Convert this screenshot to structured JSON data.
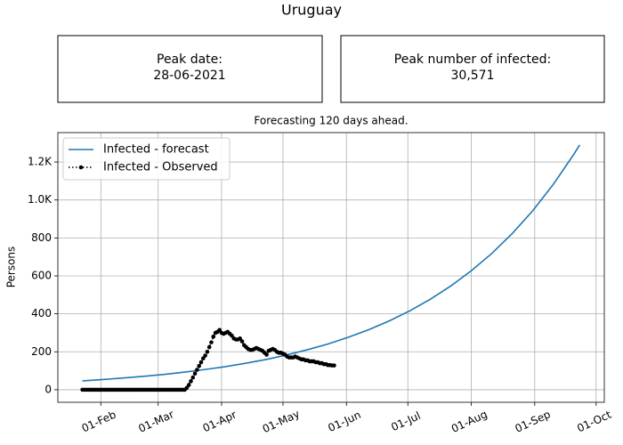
{
  "title": "Uruguay",
  "info_boxes": [
    {
      "label": "Peak date:",
      "value": "28-06-2021"
    },
    {
      "label": "Peak number of infected:",
      "value": "30,571"
    }
  ],
  "chart_data": {
    "type": "line",
    "title": "Forecasting 120 days ahead.",
    "y_label": "Persons",
    "xlim": [
      11,
      278
    ],
    "xticks": [
      {
        "value": 32,
        "label": "01-Feb"
      },
      {
        "value": 60,
        "label": "01-Mar"
      },
      {
        "value": 91,
        "label": "01-Apr"
      },
      {
        "value": 121,
        "label": "01-May"
      },
      {
        "value": 152,
        "label": "01-Jun"
      },
      {
        "value": 182,
        "label": "01-Jul"
      },
      {
        "value": 213,
        "label": "01-Aug"
      },
      {
        "value": 244,
        "label": "01-Sep"
      },
      {
        "value": 274,
        "label": "01-Oct"
      }
    ],
    "ylim": [
      -66,
      1355
    ],
    "yticks": [
      0,
      200,
      400,
      600,
      800,
      {
        "value": 1000,
        "label": "1.0K"
      },
      {
        "value": 1200,
        "label": "1.2K"
      }
    ],
    "grid": true,
    "legend": "upper left",
    "series": [
      {
        "name": "Infected - forecast",
        "color": "#1f77b4",
        "dash": "solid",
        "marker": "none",
        "x": [
          23,
          33,
          43,
          53,
          63,
          73,
          83,
          93,
          103,
          113,
          123,
          133,
          143,
          153,
          163,
          173,
          183,
          193,
          203,
          213,
          223,
          233,
          243,
          253,
          263,
          266
        ],
        "values": [
          47,
          54,
          62,
          71,
          81,
          93,
          107,
          122,
          140,
          160,
          184,
          211,
          241,
          277,
          317,
          363,
          416,
          477,
          547,
          627,
          718,
          823,
          943,
          1081,
          1239,
          1290
        ]
      },
      {
        "name": "Infected - Observed",
        "color": "#000000",
        "dash": "dotted",
        "marker": "circle",
        "x": [
          23,
          24,
          25,
          26,
          27,
          28,
          29,
          30,
          31,
          32,
          33,
          34,
          35,
          36,
          37,
          38,
          39,
          40,
          41,
          42,
          43,
          44,
          45,
          46,
          47,
          48,
          49,
          50,
          51,
          52,
          53,
          54,
          55,
          56,
          57,
          58,
          59,
          60,
          61,
          62,
          63,
          64,
          65,
          66,
          67,
          68,
          69,
          70,
          71,
          72,
          73,
          74,
          75,
          76,
          77,
          78,
          79,
          80,
          81,
          82,
          83,
          84,
          85,
          86,
          87,
          88,
          89,
          90,
          91,
          92,
          93,
          94,
          95,
          96,
          97,
          98,
          99,
          100,
          101,
          102,
          103,
          104,
          105,
          106,
          107,
          108,
          109,
          110,
          111,
          112,
          113,
          114,
          115,
          116,
          117,
          118,
          119,
          120,
          121,
          122,
          123,
          124,
          125,
          126,
          127,
          128,
          129,
          130,
          131,
          132,
          133,
          134,
          135,
          136,
          137,
          138,
          139,
          140,
          141,
          142,
          143,
          144,
          145,
          146
        ],
        "values": [
          0,
          0,
          0,
          0,
          0,
          0,
          0,
          0,
          0,
          0,
          0,
          0,
          0,
          0,
          0,
          0,
          0,
          0,
          0,
          0,
          0,
          0,
          0,
          0,
          0,
          0,
          0,
          0,
          0,
          0,
          0,
          0,
          0,
          0,
          0,
          0,
          0,
          0,
          0,
          0,
          0,
          0,
          0,
          0,
          0,
          0,
          0,
          0,
          0,
          0,
          0,
          10,
          25,
          45,
          65,
          85,
          105,
          125,
          145,
          165,
          180,
          200,
          225,
          250,
          280,
          300,
          305,
          315,
          300,
          295,
          300,
          305,
          295,
          285,
          270,
          265,
          265,
          270,
          255,
          235,
          225,
          215,
          210,
          210,
          215,
          220,
          215,
          210,
          205,
          195,
          185,
          205,
          210,
          215,
          210,
          200,
          195,
          195,
          190,
          185,
          175,
          170,
          170,
          170,
          175,
          170,
          165,
          160,
          160,
          155,
          155,
          150,
          150,
          150,
          145,
          145,
          140,
          140,
          135,
          135,
          130,
          130,
          128,
          128
        ]
      }
    ]
  }
}
